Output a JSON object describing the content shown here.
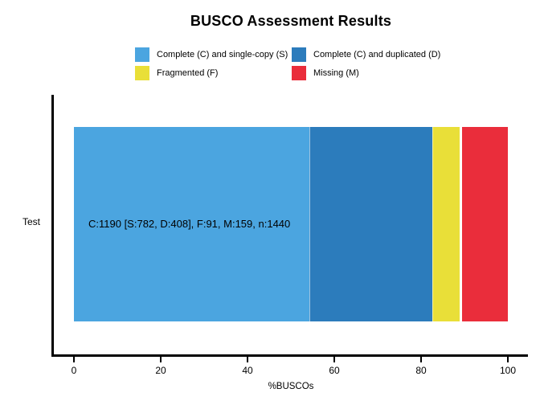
{
  "title": "BUSCO Assessment Results",
  "legend": {
    "items": [
      {
        "label": "Complete (C) and single-copy (S)",
        "color": "#4BA5E0"
      },
      {
        "label": "Complete (C) and duplicated (D)",
        "color": "#2C7CBC"
      },
      {
        "label": "Fragmented (F)",
        "color": "#E9DF38"
      },
      {
        "label": "Missing (M)",
        "color": "#EA2D3B"
      }
    ]
  },
  "axes": {
    "xlabel": "%BUSCOs",
    "category_label": "Test"
  },
  "chart_data": {
    "type": "bar",
    "orientation": "horizontal",
    "stacked": true,
    "title": "BUSCO Assessment Results",
    "xlabel": "%BUSCOs",
    "categories": [
      "Test"
    ],
    "series": [
      {
        "name": "Complete (C) and single-copy (S)",
        "key": "S",
        "values": [
          782
        ],
        "percent": [
          54.3
        ],
        "color": "#4BA5E0"
      },
      {
        "name": "Complete (C) and duplicated (D)",
        "key": "D",
        "values": [
          408
        ],
        "percent": [
          28.3
        ],
        "color": "#2C7CBC"
      },
      {
        "name": "Fragmented (F)",
        "key": "F",
        "values": [
          91
        ],
        "percent": [
          6.3
        ],
        "color": "#E9DF38"
      },
      {
        "name": "Missing (M)",
        "key": "M",
        "values": [
          159
        ],
        "percent": [
          11.0
        ],
        "color": "#EA2D3B"
      }
    ],
    "total_buscos": 1440,
    "complete_total": 1190,
    "bar_label": "C:1190 [S:782, D:408], F:91, M:159, n:1440",
    "xlim": [
      0,
      100
    ],
    "xticks": [
      0,
      20,
      40,
      60,
      80,
      100
    ],
    "grid": false,
    "legend_position": "top"
  }
}
